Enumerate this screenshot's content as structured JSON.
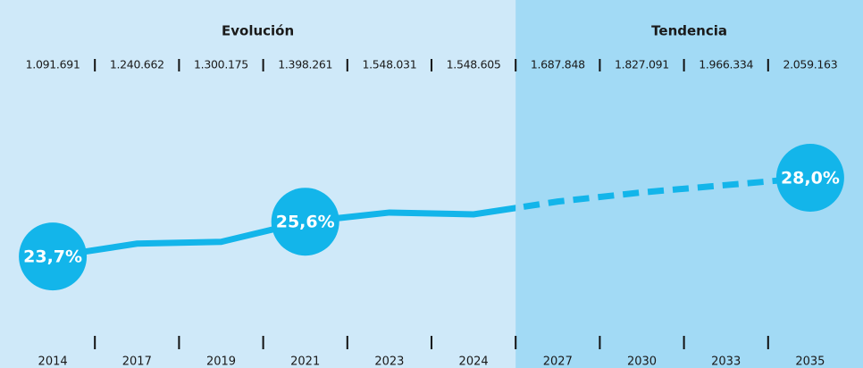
{
  "chart_data": {
    "type": "line",
    "sections": [
      {
        "title": "Evolución",
        "from": "2014",
        "to": "2024"
      },
      {
        "title": "Tendencia",
        "from": "2027",
        "to": "2035"
      }
    ],
    "categories": [
      "2014",
      "2017",
      "2019",
      "2021",
      "2023",
      "2024",
      "2027",
      "2030",
      "2033",
      "2035"
    ],
    "totals": [
      "1.091.691",
      "1.240.662",
      "1.300.175",
      "1.398.261",
      "1.548.031",
      "1.548.605",
      "1.687.848",
      "1.827.091",
      "1.966.334",
      "2.059.163"
    ],
    "values": [
      23.7,
      24.4,
      24.5,
      25.6,
      26.1,
      26.0,
      26.7,
      27.2,
      27.6,
      28.0
    ],
    "value_labels": [
      "23,7%",
      null,
      null,
      "25,6%",
      null,
      null,
      null,
      null,
      null,
      "28,0%"
    ],
    "color": "#13b5ea",
    "ylim": [
      20,
      30
    ]
  }
}
